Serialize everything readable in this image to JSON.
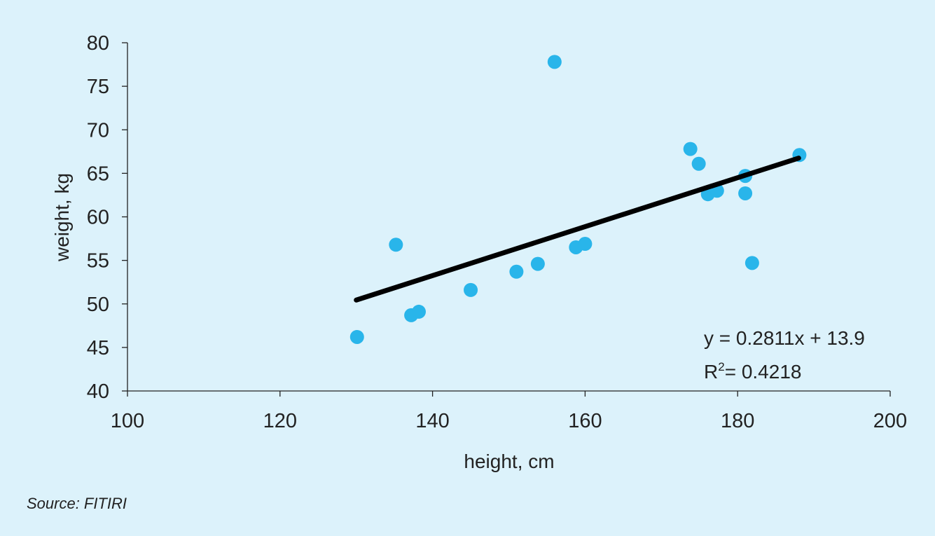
{
  "chart_data": {
    "type": "scatter",
    "xlabel": "height, cm",
    "ylabel": "weight, kg",
    "xlim": [
      100,
      200
    ],
    "ylim": [
      40,
      80
    ],
    "xticks": [
      100,
      120,
      140,
      160,
      180,
      200
    ],
    "yticks": [
      40,
      45,
      50,
      55,
      60,
      65,
      70,
      75,
      80
    ],
    "grid": false,
    "point_color": "#29b5ea",
    "trendline_color": "#000000",
    "points": [
      {
        "x": 130.1,
        "y": 46.2
      },
      {
        "x": 135.2,
        "y": 56.8
      },
      {
        "x": 137.2,
        "y": 48.7
      },
      {
        "x": 138.2,
        "y": 49.1
      },
      {
        "x": 145.0,
        "y": 51.6
      },
      {
        "x": 151.0,
        "y": 53.7
      },
      {
        "x": 153.8,
        "y": 54.6
      },
      {
        "x": 156.0,
        "y": 77.8
      },
      {
        "x": 158.8,
        "y": 56.5
      },
      {
        "x": 160.0,
        "y": 56.9
      },
      {
        "x": 173.8,
        "y": 67.8
      },
      {
        "x": 174.9,
        "y": 66.1
      },
      {
        "x": 176.1,
        "y": 62.6
      },
      {
        "x": 177.3,
        "y": 63.0
      },
      {
        "x": 181.0,
        "y": 64.7
      },
      {
        "x": 181.0,
        "y": 62.7
      },
      {
        "x": 181.9,
        "y": 54.7
      },
      {
        "x": 188.1,
        "y": 67.1
      }
    ],
    "trendline": {
      "x_start": 130,
      "x_end": 188
    },
    "equation": "y = 0.2811x + 13.9",
    "r2_prefix": "R",
    "r2_sup": "2",
    "r2_value": "= 0.4218"
  },
  "source": "Source: FITIRI"
}
